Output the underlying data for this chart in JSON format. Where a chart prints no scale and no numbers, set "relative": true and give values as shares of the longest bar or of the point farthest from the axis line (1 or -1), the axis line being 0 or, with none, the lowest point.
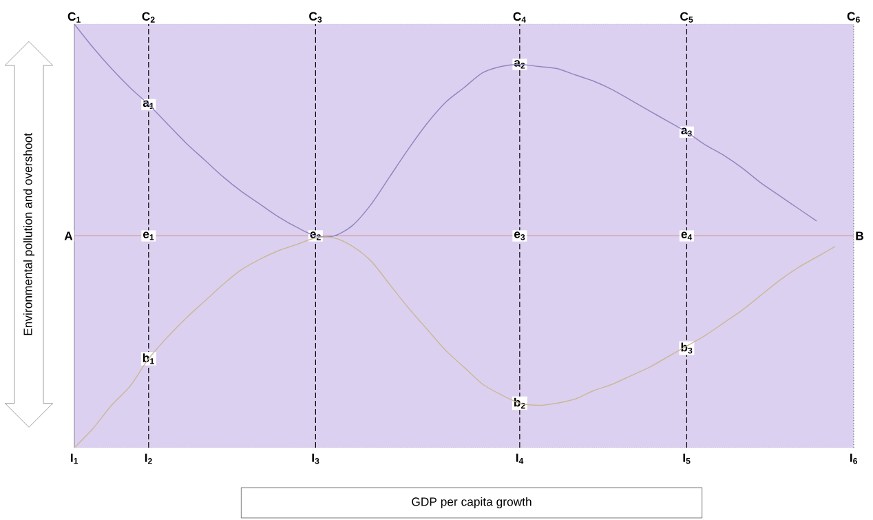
{
  "chart_data": {
    "type": "line",
    "relative": true,
    "xlabel": "GDP per capita growth",
    "ylabel": "Environmental pollution and overshoot",
    "categories": [
      "I$_{1}$",
      null,
      null,
      null,
      "I$_{2}$",
      null,
      null,
      null,
      null,
      null,
      null,
      null,
      null,
      "I$_{3}$",
      null,
      null,
      null,
      null,
      null,
      null,
      null,
      null,
      null,
      null,
      "I$_{4}$",
      null,
      null,
      null,
      null,
      null,
      null,
      null,
      null,
      "I$_{5}$",
      null,
      null,
      null,
      null,
      null,
      null,
      null,
      null,
      "I$_{6}$"
    ],
    "series": [
      {
        "color": "#8f86c0",
        "values": [
          1.0,
          0.89,
          0.79,
          0.7,
          0.62,
          0.53,
          0.44,
          0.36,
          0.28,
          0.21,
          0.15,
          0.09,
          0.04,
          0.0,
          0.0,
          0.05,
          0.15,
          0.28,
          0.41,
          0.53,
          0.63,
          0.7,
          0.77,
          0.8,
          0.81,
          0.8,
          0.79,
          0.76,
          0.73,
          0.69,
          0.64,
          0.59,
          0.54,
          0.49,
          0.43,
          0.38,
          0.32,
          0.25,
          0.19,
          0.13,
          0.07,
          null,
          null
        ]
      },
      {
        "color": "#c8b99a",
        "values": [
          -1.0,
          -0.91,
          -0.8,
          -0.71,
          -0.58,
          -0.48,
          -0.39,
          -0.31,
          -0.23,
          -0.16,
          -0.11,
          -0.07,
          -0.04,
          -0.01,
          -0.01,
          -0.05,
          -0.12,
          -0.23,
          -0.34,
          -0.44,
          -0.54,
          -0.62,
          -0.7,
          -0.75,
          -0.79,
          -0.8,
          -0.79,
          -0.77,
          -0.73,
          -0.7,
          -0.66,
          -0.62,
          -0.57,
          -0.52,
          -0.47,
          -0.41,
          -0.35,
          -0.28,
          -0.21,
          -0.15,
          -0.1,
          -0.05,
          null
        ]
      }
    ],
    "ref_lines": [
      {
        "axis": "y",
        "value": 0,
        "color": "#d08a80"
      },
      {
        "axis": "x",
        "value": "I$_{1}$",
        "label": "C$_{1}$",
        "color": "#9a8fa8",
        "line_style": "solid"
      },
      {
        "axis": "x",
        "value": "I$_{2}$",
        "label": "C$_{2}$",
        "color": "#000000",
        "line_style": "dashed"
      },
      {
        "axis": "x",
        "value": "I$_{3}$",
        "label": "C$_{3}$",
        "color": "#000000",
        "line_style": "dashed"
      },
      {
        "axis": "x",
        "value": "I$_{4}$",
        "label": "C$_{4}$",
        "color": "#000000",
        "line_style": "dashed"
      },
      {
        "axis": "x",
        "value": "I$_{5}$",
        "label": "C$_{5}$",
        "color": "#000000",
        "line_style": "dashed"
      },
      {
        "axis": "x",
        "value": "I$_{6}$",
        "label": "C$_{6}$",
        "color": "#666666",
        "line_style": "dotted"
      }
    ],
    "annotations": [
      {
        "text": "A",
        "x": "I$_{1}$",
        "y": 0
      },
      {
        "text": "B",
        "x": "I$_{6}$",
        "y": 0
      },
      {
        "text": "a$_{1}$",
        "x": "I$_{2}$",
        "y": 0.62
      },
      {
        "text": "a$_{2}$",
        "x": "I$_{4}$",
        "y": 0.81
      },
      {
        "text": "a$_{3}$",
        "x": "I$_{5}$",
        "y": 0.49
      },
      {
        "text": "e$_{1}$",
        "x": "I$_{2}$",
        "y": 0
      },
      {
        "text": "e$_{2}$",
        "x": "I$_{3}$",
        "y": 0
      },
      {
        "text": "e$_{3}$",
        "x": "I$_{4}$",
        "y": 0
      },
      {
        "text": "e$_{4}$",
        "x": "I$_{5}$",
        "y": 0
      },
      {
        "text": "b$_{1}$",
        "x": "I$_{2}$",
        "y": -0.58
      },
      {
        "text": "b$_{2}$",
        "x": "I$_{4}$",
        "y": -0.79
      },
      {
        "text": "b$_{3}$",
        "x": "I$_{5}$",
        "y": -0.53
      }
    ]
  }
}
